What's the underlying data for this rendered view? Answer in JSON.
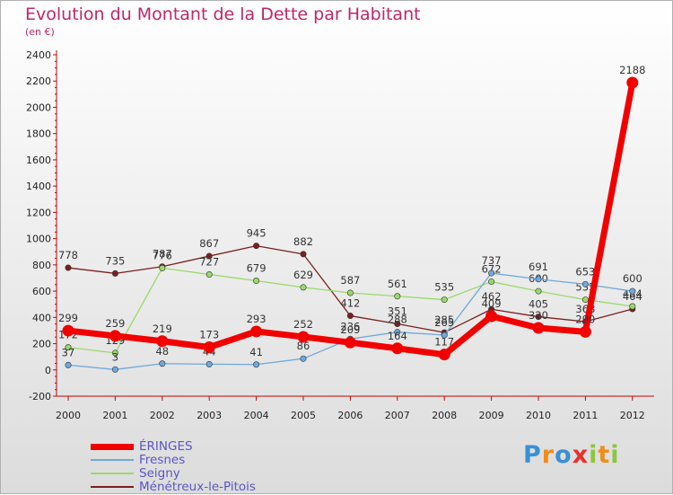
{
  "header": {
    "title": "Evolution du Montant de la Dette par Habitant",
    "subtitle": "(en €)"
  },
  "colors": {
    "title": "#c0266a",
    "legend_text": "#5a55c8",
    "axis": "#cc0000"
  },
  "logo": {
    "text": "Proxiti",
    "letters": [
      {
        "ch": "P",
        "color": "#3b8fd6"
      },
      {
        "ch": "r",
        "color": "#f08c1a"
      },
      {
        "ch": "o",
        "color": "#3b8fd6"
      },
      {
        "ch": "x",
        "color": "#e8302a"
      },
      {
        "ch": "i",
        "color": "#8dc63f"
      },
      {
        "ch": "t",
        "color": "#f08c1a"
      },
      {
        "ch": "i",
        "color": "#8dc63f"
      }
    ]
  },
  "chart_data": {
    "type": "line",
    "title": "Evolution du Montant de la Dette par Habitant",
    "subtitle": "(en €)",
    "x": [
      "2000",
      "2001",
      "2002",
      "2003",
      "2004",
      "2005",
      "2006",
      "2007",
      "2008",
      "2009",
      "2010",
      "2011",
      "2012"
    ],
    "ylim": [
      -200,
      2400
    ],
    "yticks": [
      -200,
      0,
      200,
      400,
      600,
      800,
      1000,
      1200,
      1400,
      1600,
      1800,
      2000,
      2200,
      2400
    ],
    "grid": false,
    "legend_position": "bottom-left",
    "series": [
      {
        "name": "Ménétreux-le-Pitois",
        "color": "#7a1f1f",
        "width": 1.3,
        "marker": 3.2,
        "values": [
          778,
          735,
          787,
          867,
          945,
          882,
          412,
          351,
          285,
          462,
          405,
          368,
          464
        ],
        "labels": [
          "778",
          "735",
          "787",
          "867",
          "945",
          "882",
          "412",
          "351",
          "285",
          "462",
          "405",
          "368",
          "464"
        ]
      },
      {
        "name": "Seigny",
        "color": "#99d96a",
        "width": 1.3,
        "marker": 3.2,
        "values": [
          172,
          129,
          776,
          727,
          679,
          629,
          587,
          561,
          535,
          672,
          600,
          535,
          484
        ],
        "labels": [
          "172",
          "129",
          "776",
          "727",
          "679",
          "629",
          "587",
          "561",
          "535",
          "672",
          "600",
          "535",
          "484"
        ]
      },
      {
        "name": "Fresnes",
        "color": "#6fa8dc",
        "width": 1.3,
        "marker": 3.2,
        "values": [
          37,
          3,
          48,
          44,
          41,
          86,
          236,
          288,
          265,
          737,
          691,
          653,
          600
        ],
        "labels": [
          "37",
          "3",
          "48",
          "44",
          "41",
          "86",
          "236",
          "288",
          "265",
          "737",
          "691",
          "653",
          "600"
        ]
      },
      {
        "name": "ÉRINGES",
        "color": "#f20000",
        "width": 7,
        "marker": 6.5,
        "values": [
          299,
          259,
          219,
          173,
          293,
          252,
          209,
          164,
          117,
          409,
          320,
          290,
          2188
        ],
        "labels": [
          "299",
          "259",
          "219",
          "173",
          "293",
          "252",
          "209",
          "164",
          "117",
          "409",
          "320",
          "290",
          "2188"
        ]
      }
    ],
    "legend": [
      "ÉRINGES",
      "Fresnes",
      "Seigny",
      "Ménétreux-le-Pitois"
    ]
  }
}
